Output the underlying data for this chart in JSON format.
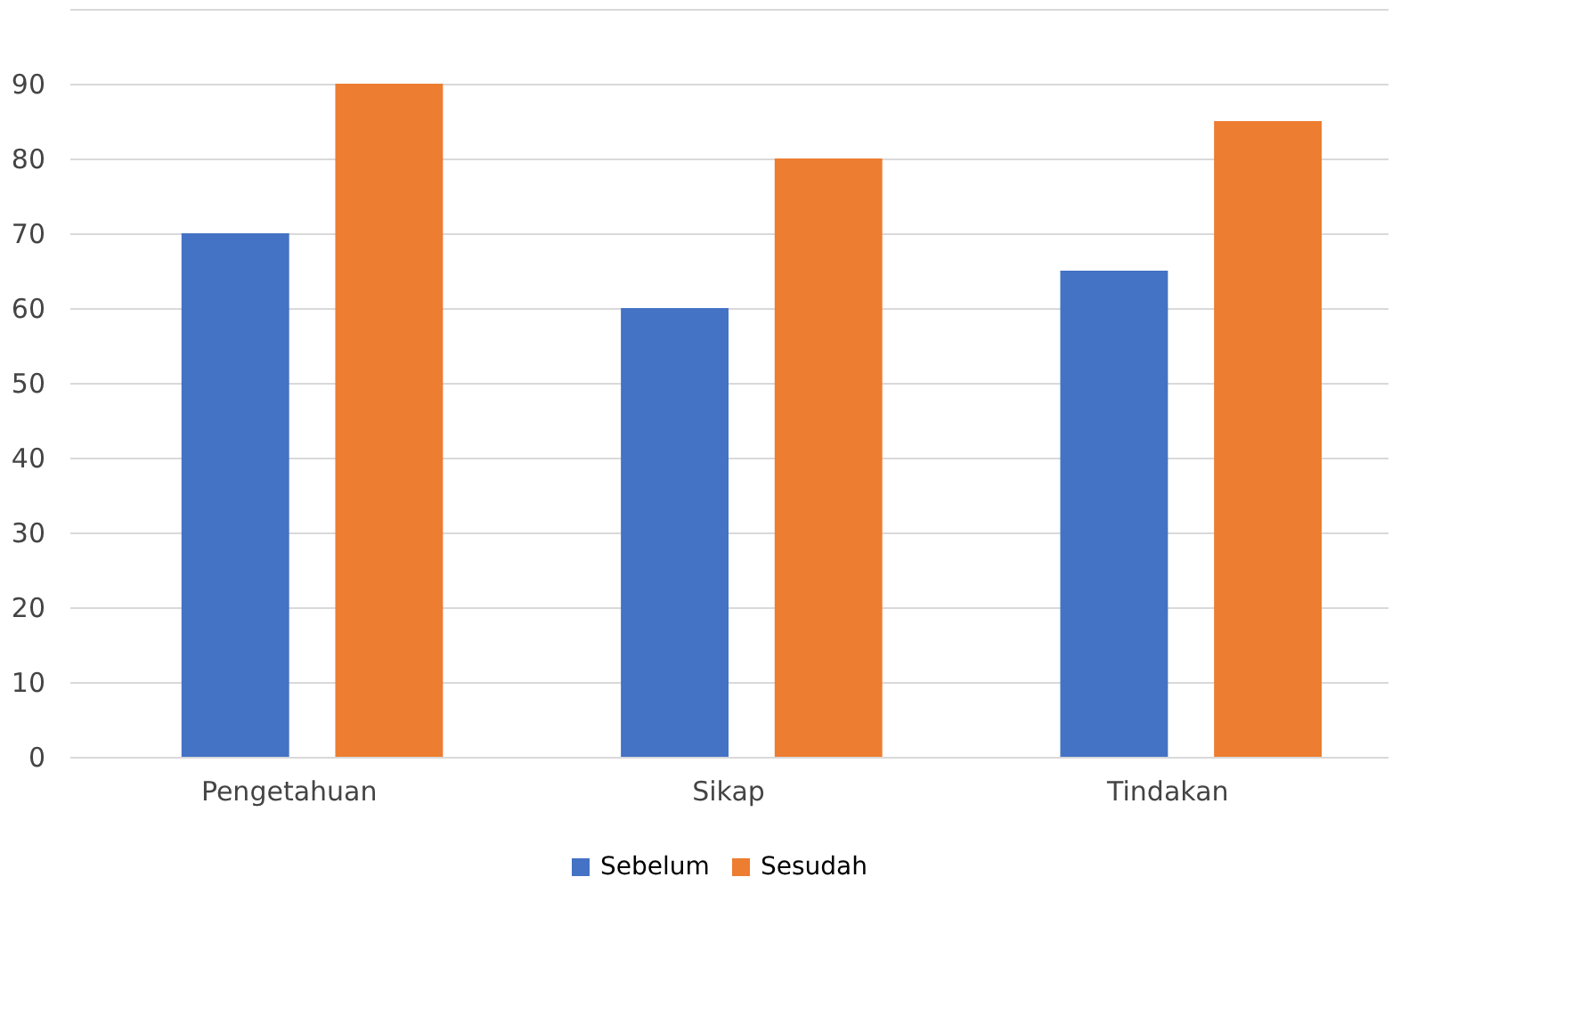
{
  "chart_data": {
    "type": "bar",
    "categories": [
      "Pengetahuan",
      "Sikap",
      "Tindakan"
    ],
    "series": [
      {
        "name": "Sebelum",
        "color": "#4472c4",
        "values": [
          70,
          60,
          65
        ]
      },
      {
        "name": "Sesudah",
        "color": "#ed7d31",
        "values": [
          90,
          80,
          85
        ]
      }
    ],
    "ylim": [
      0,
      100
    ],
    "yticks": [
      0,
      10,
      20,
      30,
      40,
      50,
      60,
      70,
      80,
      90,
      {
        "value": 100,
        "label": null
      }
    ],
    "grid": "y",
    "legend": "bottom"
  }
}
